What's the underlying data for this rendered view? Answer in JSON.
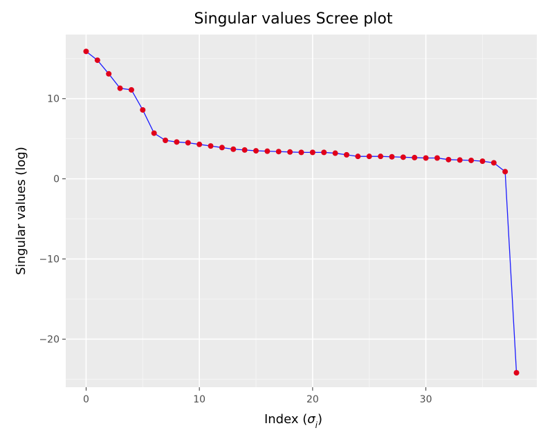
{
  "chart_data": {
    "type": "line",
    "title": "Singular values Scree plot",
    "xlabel_prefix": "Index (",
    "xlabel_symbol": "σ",
    "xlabel_subscript": "i",
    "xlabel_suffix": ")",
    "ylabel": "Singular values (log)",
    "xlim": [
      -1.8,
      39.8
    ],
    "ylim": [
      -26.0,
      18.0
    ],
    "x_ticks": [
      0,
      10,
      20,
      30
    ],
    "x_tick_labels": [
      "0",
      "10",
      "20",
      "30"
    ],
    "y_ticks": [
      -20,
      -10,
      0,
      10
    ],
    "y_tick_labels": [
      "−20",
      "−10",
      "0",
      "10"
    ],
    "grid": true,
    "legend": "none",
    "series": [
      {
        "x": [
          0,
          1,
          2,
          3,
          4,
          5,
          6,
          7,
          8,
          9,
          10,
          11,
          12,
          13,
          14,
          15,
          16,
          17,
          18,
          19,
          20,
          21,
          22,
          23,
          24,
          25,
          26,
          27,
          28,
          29,
          30,
          31,
          32,
          33,
          34,
          35,
          36,
          37,
          38
        ],
        "y": [
          15.9,
          14.8,
          13.1,
          11.3,
          11.1,
          8.6,
          5.7,
          4.8,
          4.6,
          4.5,
          4.3,
          4.1,
          3.9,
          3.7,
          3.6,
          3.5,
          3.45,
          3.4,
          3.35,
          3.3,
          3.3,
          3.3,
          3.2,
          3.0,
          2.8,
          2.8,
          2.8,
          2.75,
          2.7,
          2.65,
          2.6,
          2.6,
          2.4,
          2.35,
          2.3,
          2.2,
          2.0,
          0.9,
          -24.2
        ]
      }
    ],
    "colors": {
      "line": "#1a1aff",
      "marker": "#e0001a",
      "panel_background": "#ebebeb",
      "grid_major": "#ffffff",
      "grid_minor": "#f5f5f5",
      "tick_label": "#4d4d4d"
    }
  }
}
